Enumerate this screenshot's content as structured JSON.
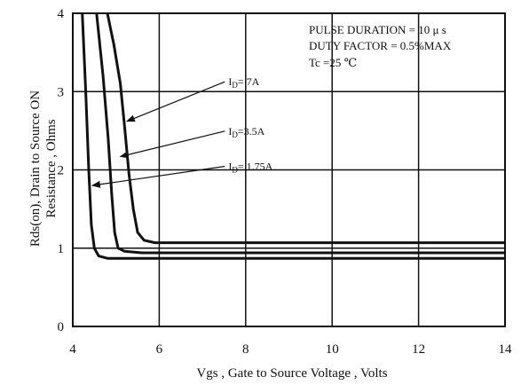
{
  "chart_data": {
    "type": "line",
    "xlabel": "Vgs , Gate to Source Voltage ,  Volts",
    "ylabel_lines": [
      "Rds(on), Drain to Source ON",
      "Resistance , Ohms"
    ],
    "xlim": [
      4,
      14
    ],
    "ylim": [
      0,
      4
    ],
    "x_ticks": [
      4,
      6,
      8,
      10,
      12,
      14
    ],
    "y_ticks": [
      0,
      1,
      2,
      3,
      4
    ],
    "x_tick_labels": [
      "4",
      "6",
      "8",
      "10",
      "12",
      "14"
    ],
    "y_tick_labels": [
      "0",
      "1",
      "2",
      "3",
      "4"
    ],
    "grid": true,
    "conditions": [
      "PULSE   DURATION = 10 μ s",
      "DUTY   FACTOR = 0.5%MAX",
      "Tc =25 ℃"
    ],
    "series": [
      {
        "name": "ID= 7A",
        "label_main": "I",
        "label_sub": "D",
        "label_rest": "= 7A",
        "label_at": [
          7.6,
          3.08
        ],
        "arrow_to": [
          5.25,
          2.62
        ],
        "points": [
          [
            4.8,
            4.0
          ],
          [
            4.95,
            3.6
          ],
          [
            5.1,
            3.1
          ],
          [
            5.2,
            2.55
          ],
          [
            5.3,
            1.95
          ],
          [
            5.4,
            1.5
          ],
          [
            5.5,
            1.2
          ],
          [
            5.65,
            1.1
          ],
          [
            5.9,
            1.07
          ],
          [
            8,
            1.07
          ],
          [
            14,
            1.07
          ]
        ]
      },
      {
        "name": "ID=3.5A",
        "label_main": "I",
        "label_sub": "D",
        "label_rest": "=3.5A",
        "label_at": [
          7.6,
          2.45
        ],
        "arrow_to": [
          5.1,
          2.17
        ],
        "points": [
          [
            4.55,
            4.0
          ],
          [
            4.7,
            3.2
          ],
          [
            4.82,
            2.4
          ],
          [
            4.9,
            1.7
          ],
          [
            4.97,
            1.2
          ],
          [
            5.05,
            1.0
          ],
          [
            5.2,
            0.96
          ],
          [
            5.6,
            0.94
          ],
          [
            14,
            0.94
          ]
        ]
      },
      {
        "name": "ID= 1.75A",
        "label_main": "I",
        "label_sub": "D",
        "label_rest": "= 1.75A",
        "label_at": [
          7.6,
          2.0
        ],
        "arrow_to": [
          4.45,
          1.8
        ],
        "points": [
          [
            4.22,
            4.0
          ],
          [
            4.3,
            3.0
          ],
          [
            4.37,
            2.0
          ],
          [
            4.43,
            1.3
          ],
          [
            4.5,
            1.0
          ],
          [
            4.6,
            0.9
          ],
          [
            4.8,
            0.87
          ],
          [
            5.3,
            0.87
          ],
          [
            14,
            0.87
          ]
        ]
      }
    ]
  }
}
